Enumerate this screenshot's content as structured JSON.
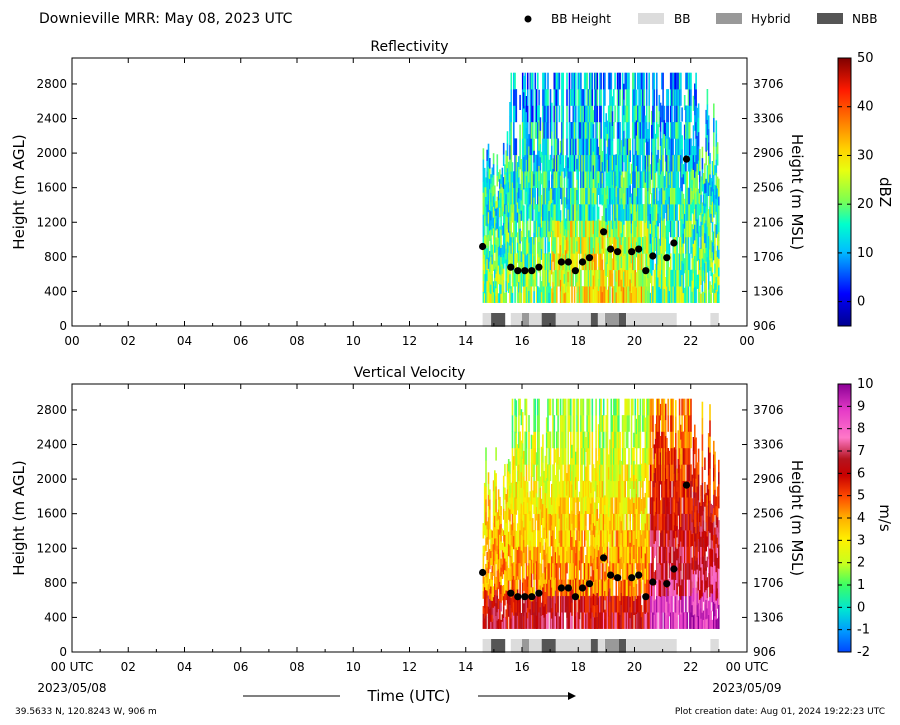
{
  "header": {
    "title": "Downieville MRR:  May 08, 2023 UTC"
  },
  "legend": {
    "items": [
      {
        "label": "BB Height",
        "kind": "dot",
        "color": "#000000"
      },
      {
        "label": "BB",
        "kind": "bar",
        "color": "#dcdcdc"
      },
      {
        "label": "Hybrid",
        "kind": "bar",
        "color": "#999999"
      },
      {
        "label": "NBB",
        "kind": "bar",
        "color": "#555555"
      }
    ]
  },
  "footer": {
    "location": "39.5633 N, 120.8243 W, 906 m",
    "created": "Plot creation date: Aug 01, 2024 19:22:23 UTC",
    "xlabel": "Time (UTC)",
    "start_label": "00 UTC",
    "start_date": "2023/05/08",
    "end_label": "00 UTC",
    "end_date": "2023/05/09"
  },
  "chart_data": [
    {
      "type": "heatmap",
      "title": "Reflectivity",
      "ylabel": "Height (m AGL)",
      "y2label": "Height (m MSL)",
      "xlim": [
        0,
        24
      ],
      "ylim": [
        0,
        3100
      ],
      "xticks": [
        "00",
        "02",
        "04",
        "06",
        "08",
        "10",
        "12",
        "14",
        "16",
        "18",
        "20",
        "22",
        "00"
      ],
      "yticks": [
        0,
        400,
        800,
        1200,
        1600,
        2000,
        2400,
        2800
      ],
      "y2ticks": [
        "906",
        "1306",
        "1706",
        "2106",
        "2506",
        "2906",
        "3306",
        "3706"
      ],
      "colorbar": {
        "label": "dBZ",
        "ticks": [
          "0",
          "10",
          "20",
          "30",
          "40",
          "50"
        ],
        "min": -5,
        "max": 50
      },
      "data_extent_hours": [
        14.6,
        23.0
      ],
      "bb_height": {
        "x": [
          14.6,
          15.6,
          15.85,
          16.1,
          16.35,
          16.6,
          17.4,
          17.65,
          17.9,
          18.15,
          18.4,
          18.9,
          19.15,
          19.4,
          19.9,
          20.15,
          20.4,
          20.65,
          21.15,
          21.4,
          21.85
        ],
        "y": [
          920,
          680,
          640,
          640,
          640,
          680,
          740,
          740,
          640,
          740,
          790,
          1090,
          890,
          860,
          860,
          890,
          640,
          810,
          790,
          960,
          1930
        ]
      },
      "bb_type": [
        {
          "start": 14.6,
          "end": 14.9,
          "type": "BB"
        },
        {
          "start": 14.9,
          "end": 15.4,
          "type": "NBB"
        },
        {
          "start": 15.6,
          "end": 16.0,
          "type": "BB"
        },
        {
          "start": 16.0,
          "end": 16.25,
          "type": "Hybrid"
        },
        {
          "start": 16.25,
          "end": 16.7,
          "type": "BB"
        },
        {
          "start": 16.7,
          "end": 17.2,
          "type": "NBB"
        },
        {
          "start": 17.2,
          "end": 18.45,
          "type": "BB"
        },
        {
          "start": 18.45,
          "end": 18.7,
          "type": "NBB"
        },
        {
          "start": 18.7,
          "end": 18.95,
          "type": "BB"
        },
        {
          "start": 18.95,
          "end": 19.45,
          "type": "Hybrid"
        },
        {
          "start": 19.45,
          "end": 19.7,
          "type": "NBB"
        },
        {
          "start": 19.7,
          "end": 21.5,
          "type": "BB"
        },
        {
          "start": 22.7,
          "end": 23.0,
          "type": "BB"
        }
      ]
    },
    {
      "type": "heatmap",
      "title": "Vertical Velocity",
      "ylabel": "Height (m AGL)",
      "y2label": "Height (m MSL)",
      "xlim": [
        0,
        24
      ],
      "ylim": [
        0,
        3100
      ],
      "xticks": [
        "00 UTC",
        "02",
        "04",
        "06",
        "08",
        "10",
        "12",
        "14",
        "16",
        "18",
        "20",
        "22",
        "00 UTC"
      ],
      "yticks": [
        0,
        400,
        800,
        1200,
        1600,
        2000,
        2400,
        2800
      ],
      "y2ticks": [
        "906",
        "1306",
        "1706",
        "2106",
        "2506",
        "2906",
        "3306",
        "3706"
      ],
      "colorbar": {
        "label": "m/s",
        "ticks": [
          "-2",
          "-1",
          "0",
          "1",
          "2",
          "3",
          "4",
          "5",
          "6",
          "7",
          "8",
          "9",
          "10"
        ],
        "min": -2,
        "max": 10
      },
      "data_extent_hours": [
        14.6,
        23.0
      ],
      "bb_height": {
        "x": [
          14.6,
          15.6,
          15.85,
          16.1,
          16.35,
          16.6,
          17.4,
          17.65,
          17.9,
          18.15,
          18.4,
          18.9,
          19.15,
          19.4,
          19.9,
          20.15,
          20.4,
          20.65,
          21.15,
          21.4,
          21.85
        ],
        "y": [
          920,
          680,
          640,
          640,
          640,
          680,
          740,
          740,
          640,
          740,
          790,
          1090,
          890,
          860,
          860,
          890,
          640,
          810,
          790,
          960,
          1930
        ]
      },
      "bb_type": [
        {
          "start": 14.6,
          "end": 14.9,
          "type": "BB"
        },
        {
          "start": 14.9,
          "end": 15.4,
          "type": "NBB"
        },
        {
          "start": 15.6,
          "end": 16.0,
          "type": "BB"
        },
        {
          "start": 16.0,
          "end": 16.25,
          "type": "Hybrid"
        },
        {
          "start": 16.25,
          "end": 16.7,
          "type": "BB"
        },
        {
          "start": 16.7,
          "end": 17.2,
          "type": "NBB"
        },
        {
          "start": 17.2,
          "end": 18.45,
          "type": "BB"
        },
        {
          "start": 18.45,
          "end": 18.7,
          "type": "NBB"
        },
        {
          "start": 18.7,
          "end": 18.95,
          "type": "BB"
        },
        {
          "start": 18.95,
          "end": 19.45,
          "type": "Hybrid"
        },
        {
          "start": 19.45,
          "end": 19.7,
          "type": "NBB"
        },
        {
          "start": 19.7,
          "end": 21.5,
          "type": "BB"
        },
        {
          "start": 22.7,
          "end": 23.0,
          "type": "BB"
        }
      ]
    }
  ]
}
